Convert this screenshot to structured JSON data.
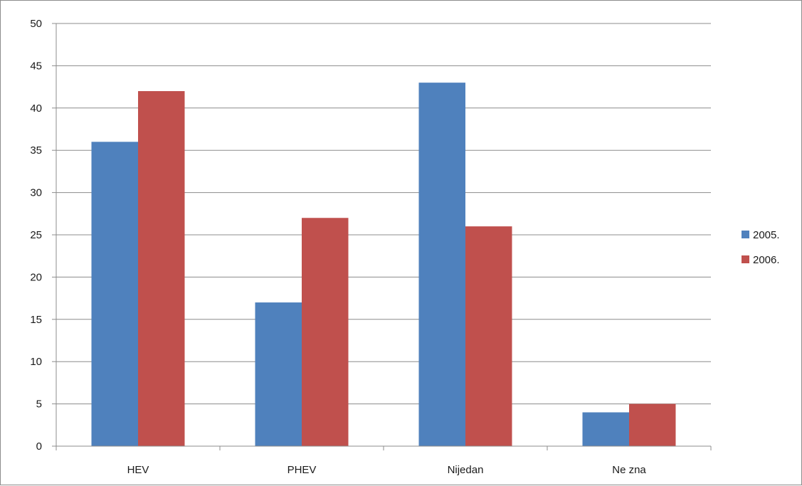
{
  "chart_data": {
    "type": "bar",
    "categories": [
      "HEV",
      "PHEV",
      "Nijedan",
      "Ne zna"
    ],
    "series": [
      {
        "name": "2005.",
        "values": [
          36,
          17,
          43,
          4
        ],
        "color": "#4f81bd"
      },
      {
        "name": "2006.",
        "values": [
          42,
          27,
          26,
          5
        ],
        "color": "#c0504d"
      }
    ],
    "ylim": [
      0,
      50
    ],
    "yticks": [
      "0",
      "5",
      "10",
      "15",
      "20",
      "25",
      "30",
      "35",
      "40",
      "45",
      "50"
    ],
    "grid": true,
    "legend": "right"
  }
}
